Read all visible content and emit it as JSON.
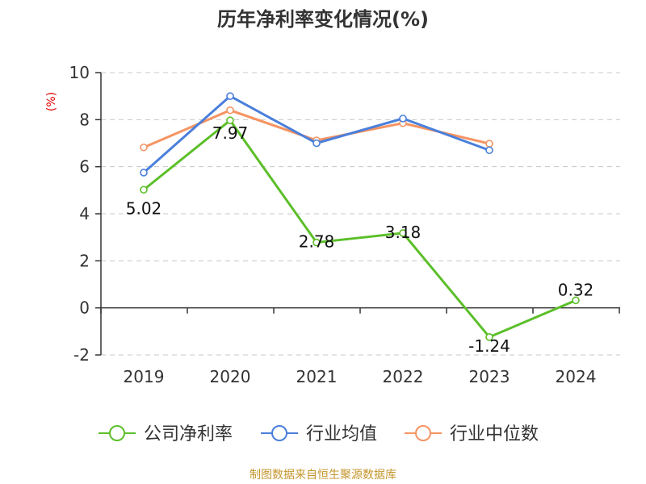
{
  "chart_data": {
    "type": "line",
    "title": "历年净利率变化情况(%)",
    "ylabel": "(%)",
    "xlabel": "",
    "ylim": [
      -2,
      10
    ],
    "yticks": [
      -2,
      0,
      2,
      4,
      6,
      8,
      10
    ],
    "categories": [
      "2019",
      "2020",
      "2021",
      "2022",
      "2023",
      "2024"
    ],
    "grid": true,
    "legend_position": "bottom",
    "series": [
      {
        "name": "公司净利率",
        "color": "#5cbf2a",
        "values": [
          5.02,
          7.97,
          2.78,
          3.18,
          -1.24,
          0.32
        ],
        "data_labels": [
          "5.02",
          "7.97",
          "2.78",
          "3.18",
          "-1.24",
          "0.32"
        ]
      },
      {
        "name": "行业均值",
        "color": "#4a7fdb",
        "values": [
          5.75,
          9.0,
          7.0,
          8.05,
          6.7,
          null
        ]
      },
      {
        "name": "行业中位数",
        "color": "#f59462",
        "values": [
          6.82,
          8.4,
          7.12,
          7.85,
          6.98,
          null
        ]
      }
    ]
  },
  "source_note": "制图数据来自恒生聚源数据库"
}
